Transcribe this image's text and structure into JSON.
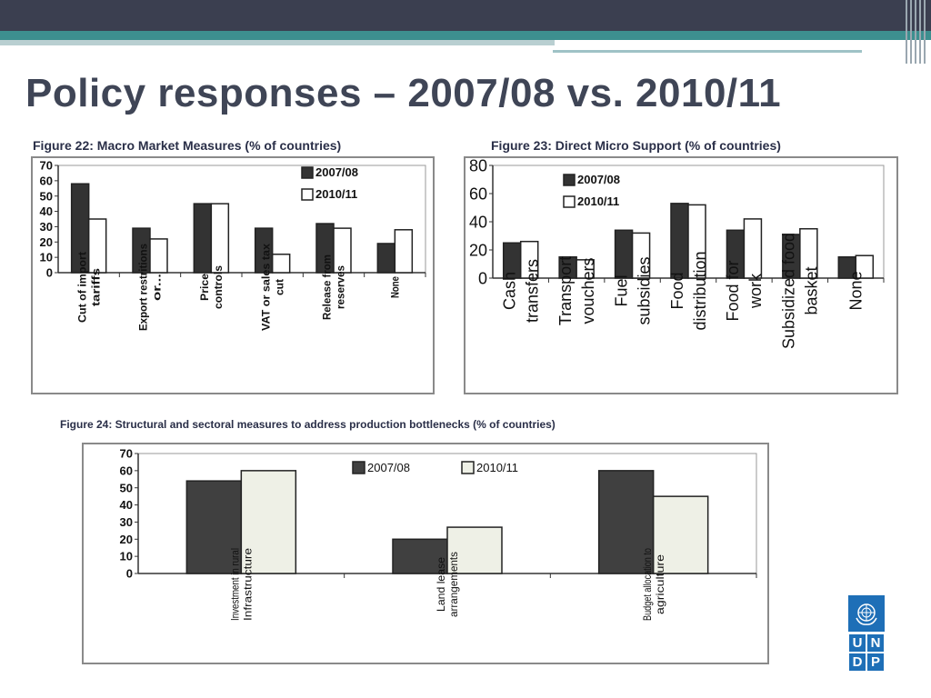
{
  "slide": {
    "title": "Policy responses – 2007/08 vs. 2010/11",
    "logo_letters": [
      "U",
      "N",
      "D",
      "P"
    ],
    "accent_color": "#3d8f8f",
    "header_color": "#3b3f50"
  },
  "chart_data": [
    {
      "type": "bar",
      "title": "Figure 22: Macro Market Measures (% of countries)",
      "categories": [
        "Cut of import tariffs",
        "Export restritions or...",
        "Price controls",
        "VAT or sales tax cut",
        "Release from reserves",
        "None"
      ],
      "series": [
        {
          "name": "2007/08",
          "color": "#333333",
          "values": [
            58,
            29,
            45,
            29,
            32,
            19
          ]
        },
        {
          "name": "2010/11",
          "color": "#ffffff",
          "values": [
            35,
            22,
            45,
            12,
            29,
            28
          ]
        }
      ],
      "yticks": [
        0,
        10,
        20,
        30,
        40,
        50,
        60,
        70
      ],
      "ylim": [
        0,
        70
      ],
      "legend": "top-right",
      "grid": false
    },
    {
      "type": "bar",
      "title": "Figure 23: Direct Micro Support (% of countries)",
      "categories": [
        "Cash transfers",
        "Transport vouchers",
        "Fuel subsidies",
        "Food distribution",
        "Food for work",
        "Subsidized food basket",
        "None"
      ],
      "series": [
        {
          "name": "2007/08",
          "color": "#333333",
          "values": [
            25,
            15,
            34,
            53,
            34,
            31,
            15
          ]
        },
        {
          "name": "2010/11",
          "color": "#ffffff",
          "values": [
            26,
            13,
            32,
            52,
            42,
            35,
            16
          ]
        }
      ],
      "yticks": [
        0,
        20,
        40,
        60,
        80
      ],
      "ylim": [
        0,
        80
      ],
      "legend": "top-left",
      "grid": false
    },
    {
      "type": "bar",
      "title": "Figure 24: Structural and sectoral measures to address production bottlenecks (% of countries)",
      "categories": [
        "Investment in rural Infrastructure",
        "Land lease arrangements",
        "Budget allocation to agriculture"
      ],
      "series": [
        {
          "name": "2007/08",
          "color": "#404040",
          "values": [
            54,
            20,
            60
          ]
        },
        {
          "name": "2010/11",
          "color": "#eef0e6",
          "values": [
            60,
            27,
            45
          ]
        }
      ],
      "yticks": [
        0,
        10,
        20,
        30,
        40,
        50,
        60,
        70
      ],
      "ylim": [
        0,
        70
      ],
      "legend": "top-center",
      "grid": false
    }
  ]
}
